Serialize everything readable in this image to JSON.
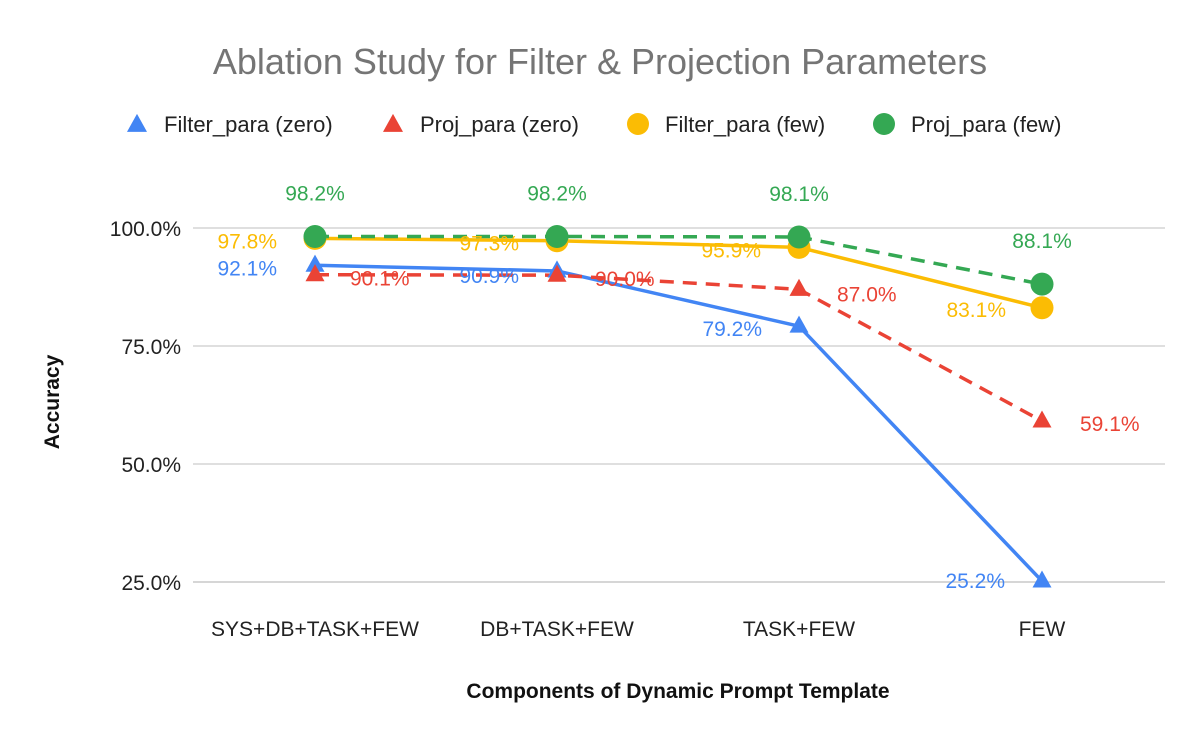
{
  "chart_data": {
    "type": "line",
    "title": "Ablation Study for Filter & Projection Parameters",
    "xlabel": "Components of Dynamic Prompt Template",
    "ylabel": "Accuracy",
    "categories": [
      "SYS+DB+TASK+FEW",
      "DB+TASK+FEW",
      "TASK+FEW",
      "FEW"
    ],
    "ylim": [
      0.25,
      1.0
    ],
    "yticks": [
      {
        "value": 1.0,
        "label": "100.0%"
      },
      {
        "value": 0.75,
        "label": "75.0%"
      },
      {
        "value": 0.5,
        "label": "50.0%"
      },
      {
        "value": 0.25,
        "label": "25.0%"
      }
    ],
    "grid": true,
    "legend_position": "top",
    "series": [
      {
        "name": "Filter_para (zero)",
        "color": "#4285f4",
        "marker": "triangle",
        "line_style": "solid",
        "values": [
          0.921,
          0.909,
          0.792,
          0.252
        ],
        "labels": [
          "92.1%",
          "90.9%",
          "79.2%",
          "25.2%"
        ]
      },
      {
        "name": "Proj_para (zero)",
        "color": "#ea4335",
        "marker": "triangle",
        "line_style": "dashed",
        "values": [
          0.901,
          0.9,
          0.87,
          0.591
        ],
        "labels": [
          "90.1%",
          "90.0%",
          "87.0%",
          "59.1%"
        ]
      },
      {
        "name": "Filter_para (few)",
        "color": "#fbbc04",
        "marker": "circle",
        "line_style": "solid",
        "values": [
          0.978,
          0.973,
          0.959,
          0.831
        ],
        "labels": [
          "97.8%",
          "97.3%",
          "95.9%",
          "83.1%"
        ]
      },
      {
        "name": "Proj_para (few)",
        "color": "#34a853",
        "marker": "circle",
        "line_style": "dashed",
        "values": [
          0.982,
          0.982,
          0.981,
          0.881
        ],
        "labels": [
          "98.2%",
          "98.2%",
          "98.1%",
          "88.1%"
        ]
      }
    ]
  }
}
